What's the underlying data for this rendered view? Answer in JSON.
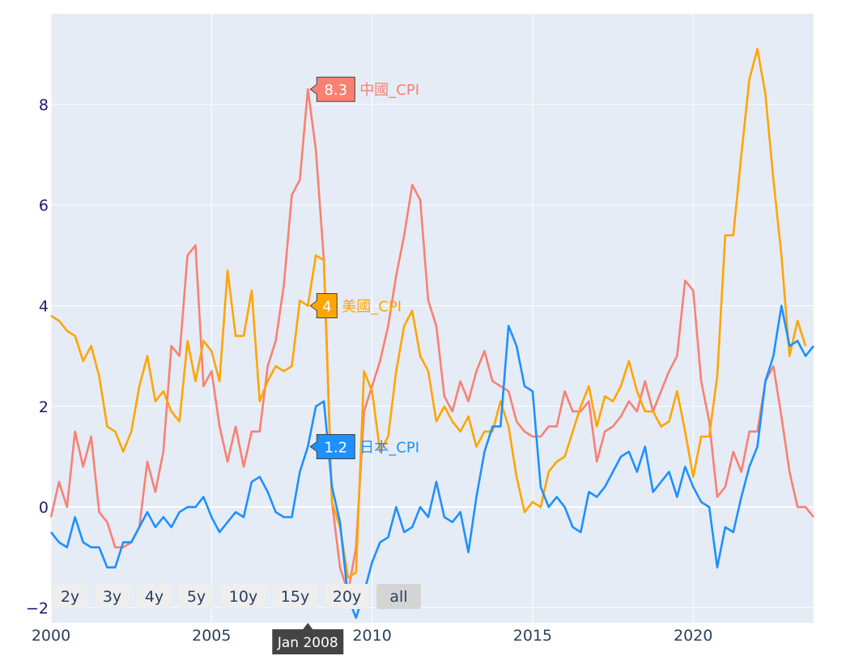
{
  "chart_data": {
    "type": "line",
    "title": "",
    "xlabel": "",
    "ylabel": "",
    "xlim": [
      2000.0,
      2023.75
    ],
    "ylim": [
      -2.3,
      9.8
    ],
    "x_ticks": [
      {
        "value": 2000,
        "label": "2000"
      },
      {
        "value": 2005,
        "label": "2005"
      },
      {
        "value": 2010,
        "label": "2010"
      },
      {
        "value": 2015,
        "label": "2015"
      },
      {
        "value": 2020,
        "label": "2020"
      }
    ],
    "y_ticks": [
      {
        "value": -2,
        "label": "−2"
      },
      {
        "value": 0,
        "label": "0"
      },
      {
        "value": 2,
        "label": "2"
      },
      {
        "value": 4,
        "label": "4"
      },
      {
        "value": 6,
        "label": "6"
      },
      {
        "value": 8,
        "label": "8"
      }
    ],
    "grid": true,
    "legend": "none",
    "plot_bg": "#e5ecf6",
    "series": [
      {
        "name": "中國_CPI",
        "color": "#fa8072",
        "x_start": 2000.0,
        "x_step": 0.25,
        "values": [
          -0.2,
          0.5,
          0.0,
          1.5,
          0.8,
          1.4,
          -0.1,
          -0.3,
          -0.8,
          -0.8,
          -0.7,
          -0.4,
          0.9,
          0.3,
          1.1,
          3.2,
          3.0,
          5.0,
          5.2,
          2.4,
          2.7,
          1.6,
          0.9,
          1.6,
          0.8,
          1.5,
          1.5,
          2.8,
          3.3,
          4.4,
          6.2,
          6.5,
          8.3,
          7.1,
          4.9,
          0.1,
          -1.2,
          -1.7,
          -0.8,
          1.9,
          2.4,
          2.9,
          3.6,
          4.6,
          5.4,
          6.4,
          6.1,
          4.1,
          3.6,
          2.2,
          1.9,
          2.5,
          2.1,
          2.7,
          3.1,
          2.5,
          2.4,
          2.3,
          1.7,
          1.5,
          1.4,
          1.4,
          1.6,
          1.6,
          2.3,
          1.9,
          1.9,
          2.1,
          0.9,
          1.5,
          1.6,
          1.8,
          2.1,
          1.9,
          2.5,
          1.9,
          2.3,
          2.7,
          3.0,
          4.5,
          4.3,
          2.5,
          1.7,
          0.2,
          0.4,
          1.1,
          0.7,
          1.5,
          1.5,
          2.5,
          2.8,
          1.8,
          0.7,
          0.0,
          0.0,
          -0.2
        ]
      },
      {
        "name": "美國_CPI",
        "color": "#ffa500",
        "x_start": 2000.0,
        "x_step": 0.25,
        "values": [
          3.8,
          3.7,
          3.5,
          3.4,
          2.9,
          3.2,
          2.6,
          1.6,
          1.5,
          1.1,
          1.5,
          2.4,
          3.0,
          2.1,
          2.3,
          1.9,
          1.7,
          3.3,
          2.5,
          3.3,
          3.1,
          2.5,
          4.7,
          3.4,
          3.4,
          4.3,
          2.1,
          2.5,
          2.8,
          2.7,
          2.8,
          4.1,
          4.0,
          5.0,
          4.9,
          0.1,
          -0.4,
          -1.4,
          -1.3,
          2.7,
          2.3,
          1.1,
          1.4,
          2.7,
          3.6,
          3.9,
          3.0,
          2.7,
          1.7,
          2.0,
          1.7,
          1.5,
          1.8,
          1.2,
          1.5,
          1.5,
          2.1,
          1.6,
          0.6,
          -0.1,
          0.1,
          0.0,
          0.7,
          0.9,
          1.0,
          1.5,
          2.0,
          2.4,
          1.6,
          2.2,
          2.1,
          2.4,
          2.9,
          2.3,
          1.9,
          1.9,
          1.6,
          1.7,
          2.3,
          1.5,
          0.6,
          1.4,
          1.4,
          2.6,
          5.4,
          5.4,
          7.0,
          8.5,
          9.1,
          8.2,
          6.5,
          5.0,
          3.0,
          3.7,
          3.2
        ]
      },
      {
        "name": "日本_CPI",
        "color": "#1e90ff",
        "x_start": 2000.0,
        "x_step": 0.25,
        "values": [
          -0.5,
          -0.7,
          -0.8,
          -0.2,
          -0.7,
          -0.8,
          -0.8,
          -1.2,
          -1.2,
          -0.7,
          -0.7,
          -0.4,
          -0.1,
          -0.4,
          -0.2,
          -0.4,
          -0.1,
          0.0,
          0.0,
          0.2,
          -0.2,
          -0.5,
          -0.3,
          -0.1,
          -0.2,
          0.5,
          0.6,
          0.3,
          -0.1,
          -0.2,
          -0.2,
          0.7,
          1.2,
          2.0,
          2.1,
          0.4,
          -0.3,
          -1.8,
          -2.2,
          -1.7,
          -1.1,
          -0.7,
          -0.6,
          0.0,
          -0.5,
          -0.4,
          0.0,
          -0.2,
          0.5,
          -0.2,
          -0.3,
          -0.1,
          -0.9,
          0.2,
          1.1,
          1.6,
          1.6,
          3.6,
          3.2,
          2.4,
          2.3,
          0.4,
          0.0,
          0.2,
          0.0,
          -0.4,
          -0.5,
          0.3,
          0.2,
          0.4,
          0.7,
          1.0,
          1.1,
          0.7,
          1.2,
          0.3,
          0.5,
          0.7,
          0.2,
          0.8,
          0.4,
          0.1,
          0.0,
          -1.2,
          -0.4,
          -0.5,
          0.2,
          0.8,
          1.2,
          2.5,
          3.0,
          4.0,
          3.2,
          3.3,
          3.0,
          3.2
        ]
      }
    ],
    "hover": {
      "date_label": "Jan 2008",
      "x": 2008.0,
      "points": [
        {
          "series": "中國_CPI",
          "value_label": "8.3",
          "y": 8.3
        },
        {
          "series": "美國_CPI",
          "value_label": "4",
          "y": 4.0
        },
        {
          "series": "日本_CPI",
          "value_label": "1.2",
          "y": 1.2
        }
      ]
    },
    "range_buttons": [
      "2y",
      "3y",
      "4y",
      "5y",
      "10y",
      "15y",
      "20y",
      "all"
    ],
    "active_range_button": "all"
  }
}
